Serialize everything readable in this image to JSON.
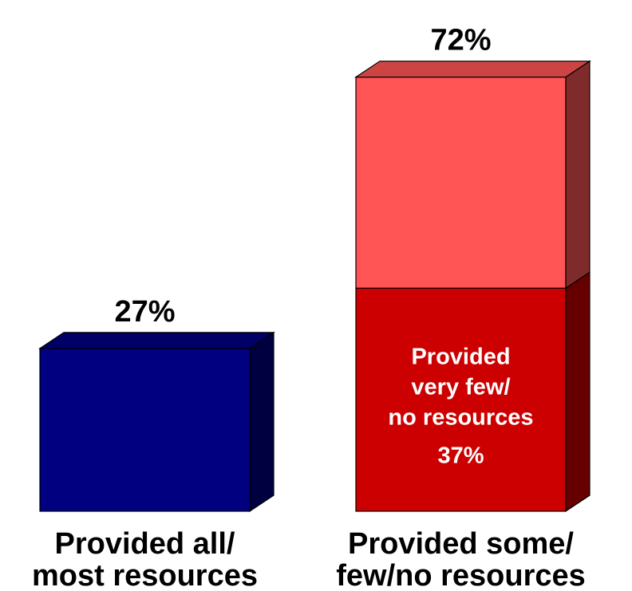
{
  "chart_data": {
    "type": "bar",
    "title": "",
    "xlabel": "",
    "ylabel": "",
    "ylim": [
      0,
      80
    ],
    "grid": false,
    "legend": "none",
    "categories": [
      "Provided all/\nmost resources",
      "Provided some/\nfew/no resources"
    ],
    "bars": [
      {
        "category": "Provided all/\nmost resources",
        "total_label": "27%",
        "segments": [
          {
            "label": "",
            "value": 27,
            "color": "#000080"
          }
        ]
      },
      {
        "category": "Provided some/\nfew/no resources",
        "total_label": "72%",
        "segments": [
          {
            "label": "Provided\nvery few/\nno resources",
            "value": 37,
            "value_label": "37%",
            "color": "#cc0000"
          },
          {
            "label": "",
            "value": 35,
            "color": "#ff5555"
          }
        ]
      }
    ]
  }
}
